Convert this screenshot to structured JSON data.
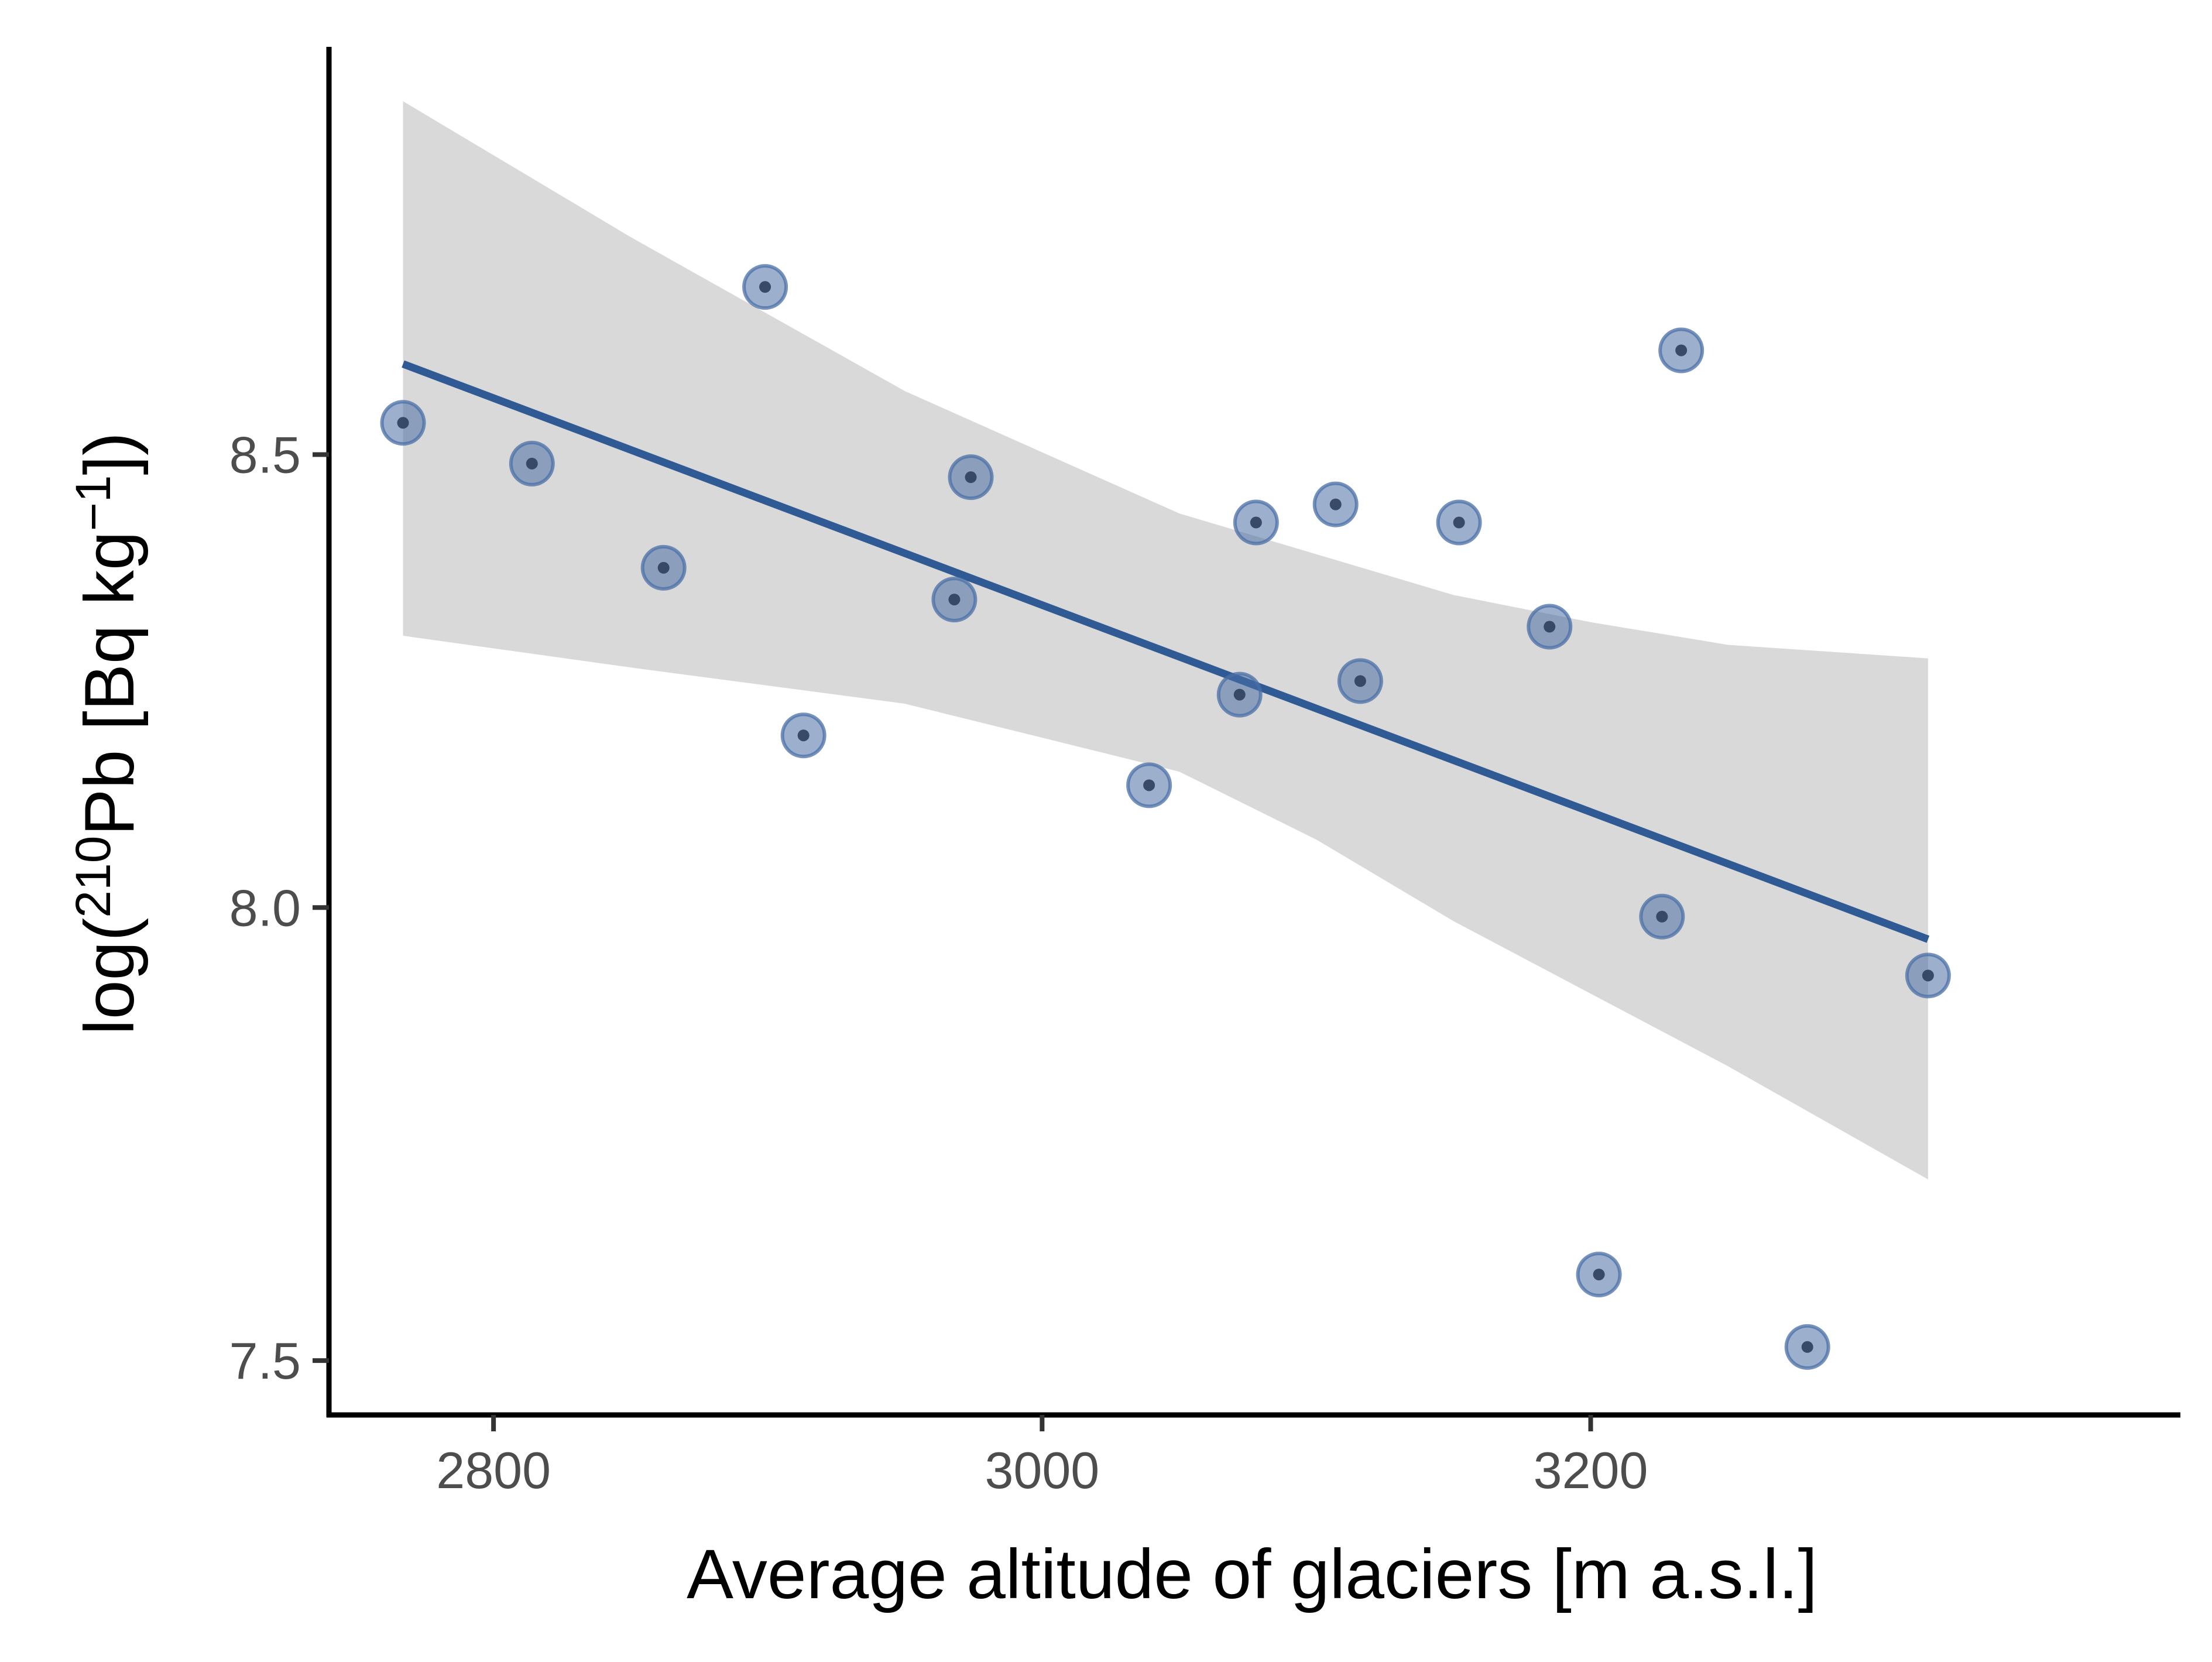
{
  "chart_data": {
    "type": "scatter",
    "title": "",
    "xlabel": "Average altitude of glaciers [m a.s.l.]",
    "ylabel": {
      "prefix": "log(",
      "superscript_isotope": "210",
      "element": "Pb",
      "unit_open": " [Bq kg",
      "superscript_exponent": "−1",
      "unit_close": "])"
    },
    "xlim": [
      2740,
      3415
    ],
    "ylim": [
      7.44,
      8.95
    ],
    "x_ticks": [
      2800,
      3000,
      3200
    ],
    "x_tick_labels": [
      "2800",
      "3000",
      "3200"
    ],
    "y_ticks": [
      7.5,
      8.0,
      8.5
    ],
    "y_tick_labels": [
      "7.5",
      "8.0",
      "8.5"
    ],
    "grid": false,
    "legend": "none",
    "colors": {
      "points": "#4a6fa5",
      "point_center": "#2e3f5c",
      "fit_line": "#2f5a94",
      "confidence_band": "#d9d9d9",
      "axis": "#000000",
      "tick_label": "#4d4d4d"
    },
    "points": [
      {
        "x": 2767,
        "y": 8.535
      },
      {
        "x": 2814,
        "y": 8.49
      },
      {
        "x": 2862,
        "y": 8.375
      },
      {
        "x": 2899,
        "y": 8.685
      },
      {
        "x": 2913,
        "y": 8.19
      },
      {
        "x": 2968,
        "y": 8.34
      },
      {
        "x": 2974,
        "y": 8.475
      },
      {
        "x": 3039,
        "y": 8.135
      },
      {
        "x": 3072,
        "y": 8.235
      },
      {
        "x": 3078,
        "y": 8.425
      },
      {
        "x": 3107,
        "y": 8.445
      },
      {
        "x": 3116,
        "y": 8.25
      },
      {
        "x": 3152,
        "y": 8.425
      },
      {
        "x": 3185,
        "y": 8.31
      },
      {
        "x": 3203,
        "y": 7.595
      },
      {
        "x": 3226,
        "y": 7.99
      },
      {
        "x": 3233,
        "y": 8.615
      },
      {
        "x": 3279,
        "y": 7.515
      },
      {
        "x": 3323,
        "y": 7.925
      }
    ],
    "fit_line": {
      "x": [
        2767,
        3323
      ],
      "y": [
        8.6,
        7.965
      ]
    },
    "confidence_band": {
      "x": [
        2767,
        2850,
        2950,
        3050,
        3100,
        3150,
        3200,
        3250,
        3323
      ],
      "upper": [
        8.89,
        8.74,
        8.57,
        8.435,
        8.39,
        8.345,
        8.315,
        8.29,
        8.275
      ],
      "lower": [
        8.3,
        8.265,
        8.225,
        8.15,
        8.075,
        7.985,
        7.905,
        7.825,
        7.7
      ]
    }
  }
}
